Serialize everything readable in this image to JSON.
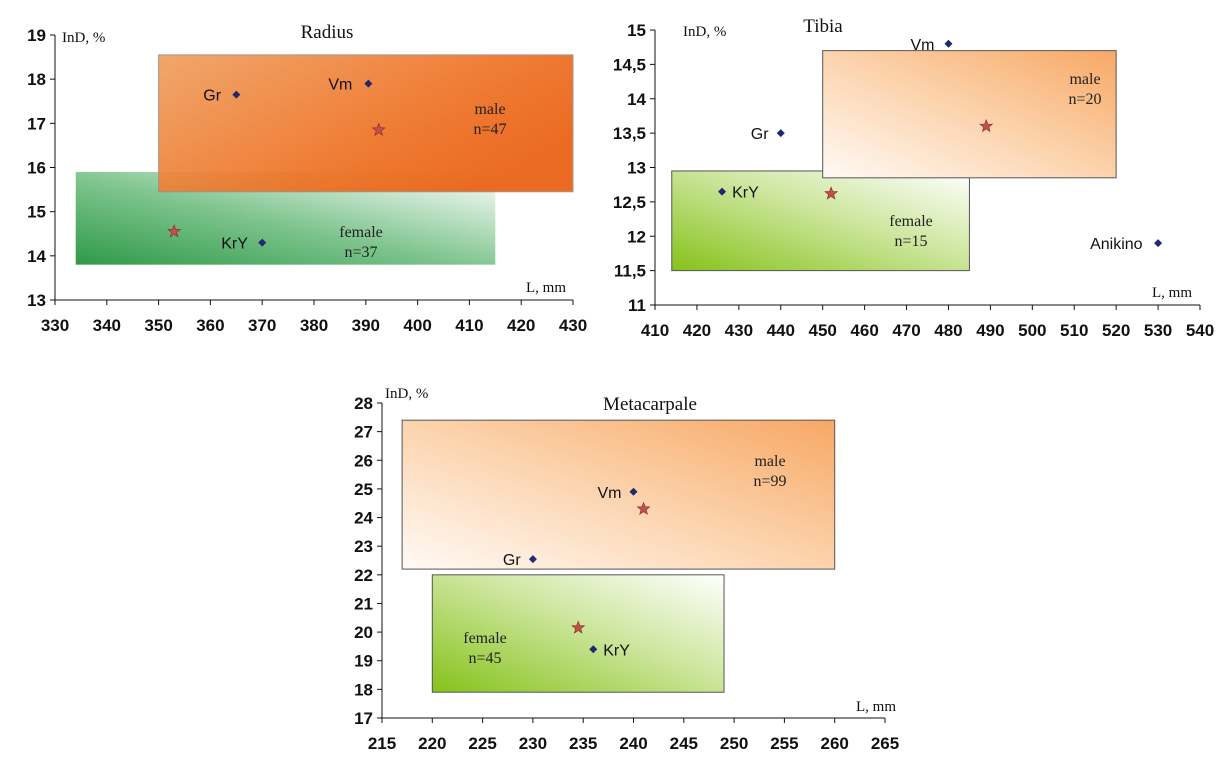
{
  "chart_data": [
    {
      "type": "scatter",
      "title": "Radius",
      "xlabel": "L, mm",
      "ylabel": "InD, %",
      "xlim": [
        330,
        430
      ],
      "ylim": [
        13,
        19
      ],
      "xticks": [
        330,
        340,
        350,
        360,
        370,
        380,
        390,
        400,
        410,
        420,
        430
      ],
      "yticks": [
        13,
        14,
        15,
        16,
        17,
        18,
        19
      ],
      "regions": [
        {
          "group": "female",
          "x": [
            334,
            415
          ],
          "y": [
            13.8,
            15.9
          ],
          "label1": "female",
          "label2": "n=37",
          "color": "#2e9e4a"
        },
        {
          "group": "male",
          "x": [
            350,
            430
          ],
          "y": [
            15.45,
            18.55
          ],
          "label1": "male",
          "label2": "n=47",
          "color": "#ef6a1c"
        }
      ],
      "points": [
        {
          "label": "Gr",
          "x": 365,
          "y": 17.65
        },
        {
          "label": "Vm",
          "x": 390.5,
          "y": 17.9
        },
        {
          "label": "KrY",
          "x": 370,
          "y": 14.3
        }
      ],
      "means": [
        {
          "group": "male",
          "x": 392.5,
          "y": 16.85
        },
        {
          "group": "female",
          "x": 353,
          "y": 14.55
        }
      ]
    },
    {
      "type": "scatter",
      "title": "Tibia",
      "xlabel": "L, mm",
      "ylabel": "InD, %",
      "xlim": [
        410,
        540
      ],
      "ylim": [
        11,
        15
      ],
      "xticks": [
        410,
        420,
        430,
        440,
        450,
        460,
        470,
        480,
        490,
        500,
        510,
        520,
        530,
        540
      ],
      "yticks": [
        "11",
        "11,5",
        "12",
        "12,5",
        "13",
        "13,5",
        "14",
        "14,5",
        "15"
      ],
      "regions": [
        {
          "group": "female",
          "x": [
            414,
            485
          ],
          "y": [
            11.5,
            12.95
          ],
          "label1": "female",
          "label2": "n=15",
          "color": "#7cc01f"
        },
        {
          "group": "male",
          "x": [
            450,
            520
          ],
          "y": [
            12.85,
            14.7
          ],
          "label1": "male",
          "label2": "n=20",
          "color": "#f9a45a"
        }
      ],
      "points": [
        {
          "label": "Vm",
          "x": 480,
          "y": 14.8
        },
        {
          "label": "Gr",
          "x": 440,
          "y": 13.5
        },
        {
          "label": "KrY",
          "x": 426,
          "y": 12.65
        },
        {
          "label": "Anikino",
          "x": 530,
          "y": 11.9
        }
      ],
      "means": [
        {
          "group": "male",
          "x": 489,
          "y": 13.6
        },
        {
          "group": "female",
          "x": 452,
          "y": 12.62
        }
      ]
    },
    {
      "type": "scatter",
      "title": "Metacarpale",
      "xlabel": "L, mm",
      "ylabel": "InD, %",
      "xlim": [
        215,
        265
      ],
      "ylim": [
        17,
        28
      ],
      "xticks": [
        215,
        220,
        225,
        230,
        235,
        240,
        245,
        250,
        255,
        260,
        265
      ],
      "yticks": [
        17,
        18,
        19,
        20,
        21,
        22,
        23,
        24,
        25,
        26,
        27,
        28
      ],
      "regions": [
        {
          "group": "male",
          "x": [
            217,
            260
          ],
          "y": [
            22.2,
            27.4
          ],
          "label1": "male",
          "label2": "n=99",
          "color": "#f9a45a"
        },
        {
          "group": "female",
          "x": [
            220,
            249
          ],
          "y": [
            17.9,
            22.0
          ],
          "label1": "female",
          "label2": "n=45",
          "color": "#7cc01f"
        }
      ],
      "points": [
        {
          "label": "Vm",
          "x": 240,
          "y": 24.9
        },
        {
          "label": "Gr",
          "x": 230,
          "y": 22.55
        },
        {
          "label": "KrY",
          "x": 236,
          "y": 19.4
        }
      ],
      "means": [
        {
          "group": "male",
          "x": 241,
          "y": 24.3
        },
        {
          "group": "female",
          "x": 234.5,
          "y": 20.15
        }
      ]
    }
  ]
}
